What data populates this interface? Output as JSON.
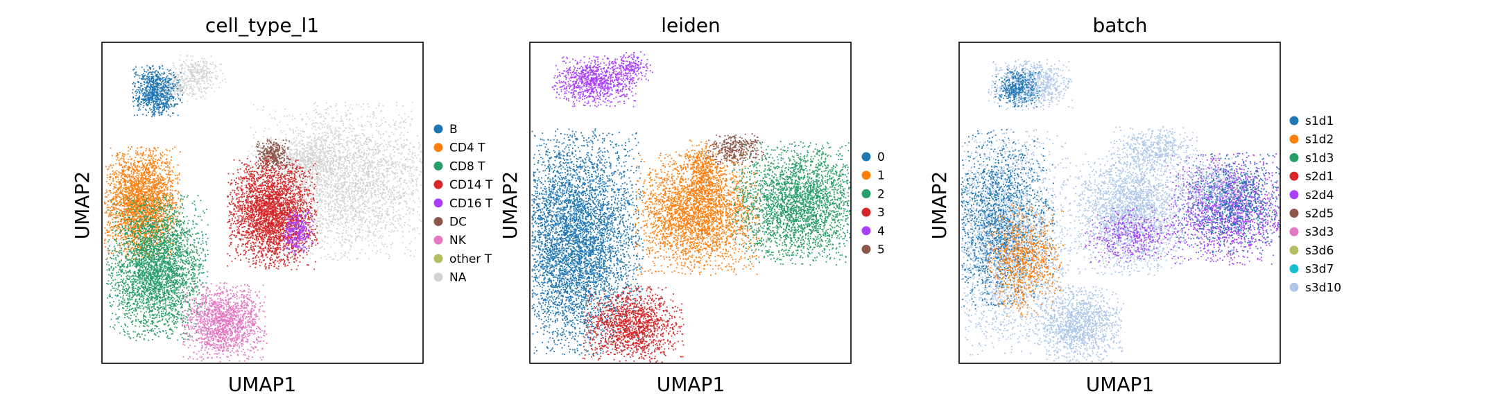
{
  "chart_data": [
    {
      "type": "scatter",
      "title": "cell_type_l1",
      "xlabel": "UMAP1",
      "ylabel": "UMAP2",
      "grid": false,
      "legend_placement": "right",
      "legend": [
        {
          "label": "B",
          "color": "#1f77b4"
        },
        {
          "label": "CD4 T",
          "color": "#ff7f0e"
        },
        {
          "label": "CD8 T",
          "color": "#279e68"
        },
        {
          "label": "CD14 T",
          "color": "#d62728"
        },
        {
          "label": "CD16 T",
          "color": "#aa40fc"
        },
        {
          "label": "DC",
          "color": "#8c564b"
        },
        {
          "label": "NK",
          "color": "#e377c2"
        },
        {
          "label": "other T",
          "color": "#b5bd61"
        },
        {
          "label": "NA",
          "color": "#d3d3d3"
        }
      ],
      "clusters": [
        {
          "label": "B",
          "color": "#1f77b4",
          "cx": 0.17,
          "cy": 0.85,
          "rx": 0.045,
          "ry": 0.045,
          "n": 900
        },
        {
          "label": "NA",
          "color": "#d3d3d3",
          "cx": 0.3,
          "cy": 0.91,
          "rx": 0.05,
          "ry": 0.03,
          "n": 250
        },
        {
          "label": "NA",
          "color": "#d3d3d3",
          "cx": 0.25,
          "cy": 0.86,
          "rx": 0.06,
          "ry": 0.025,
          "n": 200
        },
        {
          "label": "NA",
          "color": "#d3d3d3",
          "cx": 0.75,
          "cy": 0.57,
          "rx": 0.17,
          "ry": 0.14,
          "n": 3200
        },
        {
          "label": "NA",
          "color": "#d3d3d3",
          "cx": 0.64,
          "cy": 0.64,
          "rx": 0.07,
          "ry": 0.04,
          "n": 400
        },
        {
          "label": "DC",
          "color": "#8c564b",
          "cx": 0.53,
          "cy": 0.65,
          "rx": 0.03,
          "ry": 0.03,
          "n": 350
        },
        {
          "label": "CD14 T",
          "color": "#d62728",
          "cx": 0.53,
          "cy": 0.47,
          "rx": 0.08,
          "ry": 0.1,
          "n": 3000
        },
        {
          "label": "CD16 T",
          "color": "#aa40fc",
          "cx": 0.61,
          "cy": 0.41,
          "rx": 0.03,
          "ry": 0.04,
          "n": 300
        },
        {
          "label": "CD4 T",
          "color": "#ff7f0e",
          "cx": 0.12,
          "cy": 0.5,
          "rx": 0.07,
          "ry": 0.1,
          "n": 2600
        },
        {
          "label": "CD8 T",
          "color": "#279e68",
          "cx": 0.17,
          "cy": 0.3,
          "rx": 0.09,
          "ry": 0.13,
          "n": 3200
        },
        {
          "label": "NK",
          "color": "#e377c2",
          "cx": 0.38,
          "cy": 0.13,
          "rx": 0.075,
          "ry": 0.07,
          "n": 1500
        }
      ]
    },
    {
      "type": "scatter",
      "title": "leiden",
      "xlabel": "UMAP1",
      "ylabel": "UMAP2",
      "grid": false,
      "legend_placement": "right",
      "legend": [
        {
          "label": "0",
          "color": "#1f77b4"
        },
        {
          "label": "1",
          "color": "#ff7f0e"
        },
        {
          "label": "2",
          "color": "#279e68"
        },
        {
          "label": "3",
          "color": "#d62728"
        },
        {
          "label": "4",
          "color": "#aa40fc"
        },
        {
          "label": "5",
          "color": "#8c564b"
        }
      ],
      "clusters": [
        {
          "label": "4",
          "color": "#aa40fc",
          "cx": 0.2,
          "cy": 0.88,
          "rx": 0.075,
          "ry": 0.045,
          "n": 900
        },
        {
          "label": "4",
          "color": "#aa40fc",
          "cx": 0.31,
          "cy": 0.92,
          "rx": 0.04,
          "ry": 0.03,
          "n": 200
        },
        {
          "label": "0",
          "color": "#1f77b4",
          "cx": 0.14,
          "cy": 0.38,
          "rx": 0.12,
          "ry": 0.2,
          "n": 5200
        },
        {
          "label": "3",
          "color": "#d62728",
          "cx": 0.32,
          "cy": 0.12,
          "rx": 0.09,
          "ry": 0.07,
          "n": 1400
        },
        {
          "label": "1",
          "color": "#ff7f0e",
          "cx": 0.52,
          "cy": 0.47,
          "rx": 0.11,
          "ry": 0.11,
          "n": 3000
        },
        {
          "label": "1",
          "color": "#ff7f0e",
          "cx": 0.54,
          "cy": 0.61,
          "rx": 0.03,
          "ry": 0.05,
          "n": 300
        },
        {
          "label": "5",
          "color": "#8c564b",
          "cx": 0.64,
          "cy": 0.67,
          "rx": 0.055,
          "ry": 0.03,
          "n": 350
        },
        {
          "label": "2",
          "color": "#279e68",
          "cx": 0.84,
          "cy": 0.5,
          "rx": 0.12,
          "ry": 0.11,
          "n": 2800
        }
      ]
    },
    {
      "type": "scatter",
      "title": "batch",
      "xlabel": "UMAP1",
      "ylabel": "UMAP2",
      "grid": false,
      "legend_placement": "right",
      "legend": [
        {
          "label": "s1d1",
          "color": "#1f77b4"
        },
        {
          "label": "s1d2",
          "color": "#ff7f0e"
        },
        {
          "label": "s1d3",
          "color": "#279e68"
        },
        {
          "label": "s2d1",
          "color": "#d62728"
        },
        {
          "label": "s2d4",
          "color": "#aa40fc"
        },
        {
          "label": "s2d5",
          "color": "#8c564b"
        },
        {
          "label": "s3d3",
          "color": "#e377c2"
        },
        {
          "label": "s3d6",
          "color": "#b5bd61"
        },
        {
          "label": "s3d7",
          "color": "#17becf"
        },
        {
          "label": "s3d10",
          "color": "#aec7e8"
        }
      ],
      "clusters": [
        {
          "label": "s3d10",
          "color": "#aec7e8",
          "cx": 0.22,
          "cy": 0.87,
          "rx": 0.075,
          "ry": 0.045,
          "n": 900
        },
        {
          "label": "s1d1",
          "color": "#1f77b4",
          "cx": 0.18,
          "cy": 0.86,
          "rx": 0.04,
          "ry": 0.035,
          "n": 350
        },
        {
          "label": "s3d10",
          "color": "#aec7e8",
          "cx": 0.14,
          "cy": 0.38,
          "rx": 0.12,
          "ry": 0.2,
          "n": 3000
        },
        {
          "label": "s1d1",
          "color": "#1f77b4",
          "cx": 0.12,
          "cy": 0.45,
          "rx": 0.1,
          "ry": 0.16,
          "n": 1600
        },
        {
          "label": "s1d2",
          "color": "#ff7f0e",
          "cx": 0.2,
          "cy": 0.32,
          "rx": 0.07,
          "ry": 0.1,
          "n": 800
        },
        {
          "label": "s3d10",
          "color": "#aec7e8",
          "cx": 0.37,
          "cy": 0.12,
          "rx": 0.08,
          "ry": 0.07,
          "n": 1300
        },
        {
          "label": "s3d10",
          "color": "#aec7e8",
          "cx": 0.53,
          "cy": 0.47,
          "rx": 0.1,
          "ry": 0.11,
          "n": 2400
        },
        {
          "label": "s2d4",
          "color": "#aa40fc",
          "cx": 0.53,
          "cy": 0.4,
          "rx": 0.08,
          "ry": 0.05,
          "n": 400
        },
        {
          "label": "s3d10",
          "color": "#aec7e8",
          "cx": 0.6,
          "cy": 0.67,
          "rx": 0.08,
          "ry": 0.04,
          "n": 500
        },
        {
          "label": "s2d4",
          "color": "#aa40fc",
          "cx": 0.84,
          "cy": 0.48,
          "rx": 0.11,
          "ry": 0.1,
          "n": 1600
        },
        {
          "label": "s1d1",
          "color": "#1f77b4",
          "cx": 0.85,
          "cy": 0.5,
          "rx": 0.1,
          "ry": 0.09,
          "n": 900
        },
        {
          "label": "s3d10",
          "color": "#aec7e8",
          "cx": 0.78,
          "cy": 0.55,
          "rx": 0.07,
          "ry": 0.06,
          "n": 350
        }
      ]
    }
  ]
}
